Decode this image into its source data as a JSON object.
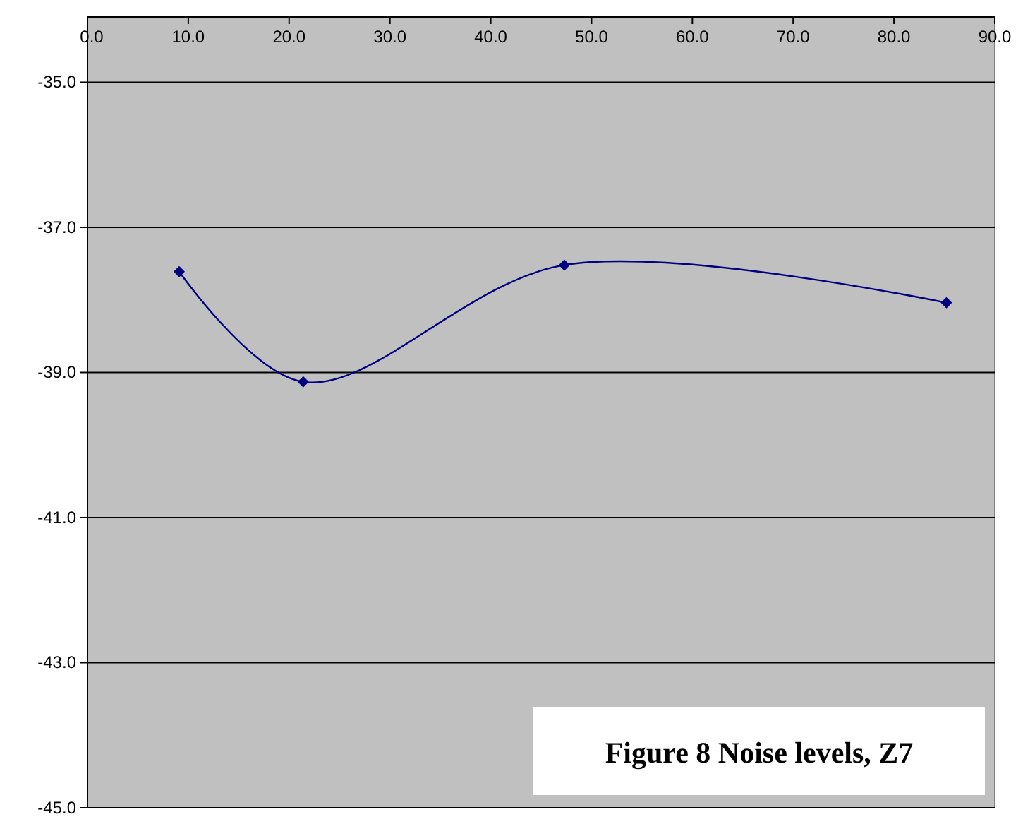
{
  "chart_data": {
    "type": "line",
    "title": "Figure 8 Noise levels, Z7",
    "x": [
      9.1,
      21.4,
      47.3,
      85.2
    ],
    "series": [
      {
        "color": "#000080",
        "values": [
          -37.61,
          -39.13,
          -37.52,
          -38.04
        ]
      }
    ],
    "xlim": [
      0,
      90
    ],
    "xticks": [
      {
        "value": 0,
        "label": "0.0"
      },
      {
        "value": 10,
        "label": "10.0"
      },
      {
        "value": 20,
        "label": "20.0"
      },
      {
        "value": 30,
        "label": "30.0"
      },
      {
        "value": 40,
        "label": "40.0"
      },
      {
        "value": 50,
        "label": "50.0"
      },
      {
        "value": 60,
        "label": "60.0"
      },
      {
        "value": 70,
        "label": "70.0"
      },
      {
        "value": 80,
        "label": "80.0"
      },
      {
        "value": 90,
        "label": "90.0"
      }
    ],
    "ylim": [
      -45,
      -34.1
    ],
    "yticks": [
      {
        "value": -45,
        "label": "-45.0"
      },
      {
        "value": -43,
        "label": "-43.0"
      },
      {
        "value": -41,
        "label": "-41.0"
      },
      {
        "value": -39,
        "label": "-39.0"
      },
      {
        "value": -37,
        "label": "-37.0"
      },
      {
        "value": -35,
        "label": "-35.0"
      }
    ],
    "grid": "y",
    "marker": "diamond",
    "line_style": "solid"
  }
}
